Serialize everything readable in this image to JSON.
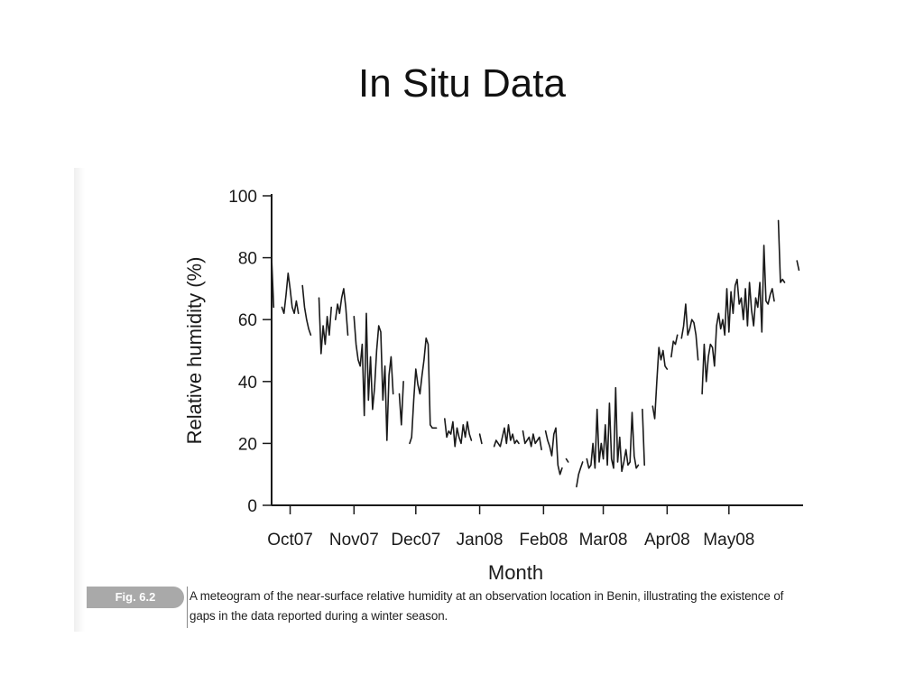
{
  "slide": {
    "title": "In Situ Data"
  },
  "figure": {
    "badge": "Fig. 6.2",
    "caption": "A meteogram of the near-surface relative humidity at an observation location in Benin, illustrating the existence of gaps in the data reported during a winter season."
  },
  "chart_data": {
    "type": "line",
    "title": "",
    "xlabel": "Month",
    "ylabel": "Relative humidity (%)",
    "ylim": [
      0,
      100
    ],
    "yticks": [
      0,
      20,
      40,
      60,
      80,
      100
    ],
    "x_range": [
      "2007-09-22",
      "2008-05-31"
    ],
    "xtick_labels": [
      "Oct07",
      "Nov07",
      "Dec07",
      "Jan08",
      "Feb08",
      "Mar08",
      "Apr08",
      "May08"
    ],
    "xtick_dates": [
      "2007-10-01",
      "2007-11-01",
      "2007-12-01",
      "2008-01-01",
      "2008-02-01",
      "2008-03-01",
      "2008-04-01",
      "2008-05-01"
    ],
    "grid": false,
    "line_color": "#1a1a1a",
    "series": [
      {
        "segments": [
          {
            "x": [
              "2007-09-22",
              "2007-09-23"
            ],
            "y": [
              80,
              64
            ]
          },
          {
            "x": [
              "2007-09-27",
              "2007-09-28",
              "2007-09-29",
              "2007-09-30",
              "2007-10-01",
              "2007-10-02",
              "2007-10-03",
              "2007-10-04",
              "2007-10-05"
            ],
            "y": [
              64,
              62,
              68,
              75,
              70,
              64,
              62,
              66,
              62
            ]
          },
          {
            "x": [
              "2007-10-07",
              "2007-10-08",
              "2007-10-09",
              "2007-10-10",
              "2007-10-11"
            ],
            "y": [
              71,
              64,
              60,
              57,
              55
            ]
          },
          {
            "x": [
              "2007-10-15",
              "2007-10-16",
              "2007-10-17",
              "2007-10-18",
              "2007-10-19",
              "2007-10-20",
              "2007-10-21"
            ],
            "y": [
              67,
              49,
              58,
              52,
              61,
              55,
              64
            ]
          },
          {
            "x": [
              "2007-10-23",
              "2007-10-24",
              "2007-10-25",
              "2007-10-26",
              "2007-10-27",
              "2007-10-28",
              "2007-10-29"
            ],
            "y": [
              60,
              65,
              62,
              67,
              70,
              64,
              55
            ]
          },
          {
            "x": [
              "2007-11-01",
              "2007-11-02",
              "2007-11-03",
              "2007-11-04",
              "2007-11-05",
              "2007-11-06",
              "2007-11-07",
              "2007-11-08",
              "2007-11-09",
              "2007-11-10",
              "2007-11-11",
              "2007-11-12",
              "2007-11-13",
              "2007-11-14",
              "2007-11-15",
              "2007-11-16",
              "2007-11-17",
              "2007-11-18",
              "2007-11-19",
              "2007-11-20"
            ],
            "y": [
              61,
              52,
              47,
              45,
              52,
              29,
              62,
              34,
              48,
              31,
              38,
              50,
              58,
              56,
              34,
              45,
              21,
              42,
              48,
              36
            ]
          },
          {
            "x": [
              "2007-11-23",
              "2007-11-24",
              "2007-11-25"
            ],
            "y": [
              36,
              26,
              40
            ]
          },
          {
            "x": [
              "2007-11-28",
              "2007-11-29",
              "2007-11-30",
              "2007-12-01",
              "2007-12-02",
              "2007-12-03",
              "2007-12-04",
              "2007-12-05",
              "2007-12-06",
              "2007-12-07",
              "2007-12-08",
              "2007-12-09",
              "2007-12-10",
              "2007-12-11"
            ],
            "y": [
              20,
              22,
              34,
              44,
              39,
              36,
              42,
              47,
              54,
              52,
              26,
              25,
              25,
              25
            ]
          },
          {
            "x": [
              "2007-12-15",
              "2007-12-16",
              "2007-12-17",
              "2007-12-18",
              "2007-12-19",
              "2007-12-20",
              "2007-12-21",
              "2007-12-22",
              "2007-12-23",
              "2007-12-24",
              "2007-12-25",
              "2007-12-26",
              "2007-12-27",
              "2007-12-28"
            ],
            "y": [
              28,
              22,
              24,
              23,
              27,
              19,
              25,
              22,
              20,
              26,
              22,
              27,
              23,
              21
            ]
          },
          {
            "x": [
              "2008-01-01",
              "2008-01-02"
            ],
            "y": [
              23,
              20
            ]
          },
          {
            "x": [
              "2008-01-08",
              "2008-01-09",
              "2008-01-10",
              "2008-01-11",
              "2008-01-12",
              "2008-01-13",
              "2008-01-14",
              "2008-01-15",
              "2008-01-16",
              "2008-01-17",
              "2008-01-18",
              "2008-01-19",
              "2008-01-20"
            ],
            "y": [
              19,
              21,
              20,
              19,
              22,
              25,
              20,
              26,
              21,
              23,
              20,
              21,
              20
            ]
          },
          {
            "x": [
              "2008-01-22",
              "2008-01-23",
              "2008-01-24",
              "2008-01-25",
              "2008-01-26",
              "2008-01-27",
              "2008-01-28",
              "2008-01-29",
              "2008-01-30",
              "2008-01-31"
            ],
            "y": [
              24,
              20,
              21,
              22,
              19,
              23,
              20,
              21,
              22,
              18
            ]
          },
          {
            "x": [
              "2008-02-02",
              "2008-02-03",
              "2008-02-04",
              "2008-02-05",
              "2008-02-06",
              "2008-02-07",
              "2008-02-08",
              "2008-02-09",
              "2008-02-10"
            ],
            "y": [
              24,
              21,
              19,
              16,
              23,
              25,
              13,
              10,
              12
            ]
          },
          {
            "x": [
              "2008-02-12",
              "2008-02-13"
            ],
            "y": [
              15,
              14
            ]
          },
          {
            "x": [
              "2008-02-17",
              "2008-02-18",
              "2008-02-19",
              "2008-02-20"
            ],
            "y": [
              6,
              10,
              12,
              14
            ]
          },
          {
            "x": [
              "2008-02-22",
              "2008-02-23",
              "2008-02-24",
              "2008-02-25",
              "2008-02-26",
              "2008-02-27",
              "2008-02-28",
              "2008-02-29",
              "2008-03-01",
              "2008-03-02",
              "2008-03-03",
              "2008-03-04",
              "2008-03-05",
              "2008-03-06",
              "2008-03-07",
              "2008-03-08",
              "2008-03-09",
              "2008-03-10",
              "2008-03-11",
              "2008-03-12",
              "2008-03-13",
              "2008-03-14",
              "2008-03-15",
              "2008-03-16",
              "2008-03-17",
              "2008-03-18"
            ],
            "y": [
              15,
              12,
              13,
              20,
              12,
              31,
              14,
              20,
              15,
              26,
              13,
              33,
              15,
              12,
              38,
              14,
              22,
              11,
              14,
              18,
              13,
              14,
              30,
              16,
              12,
              13
            ]
          },
          {
            "x": [
              "2008-03-20",
              "2008-03-21"
            ],
            "y": [
              31,
              13
            ]
          },
          {
            "x": [
              "2008-03-25",
              "2008-03-26",
              "2008-03-27",
              "2008-03-28",
              "2008-03-29",
              "2008-03-30",
              "2008-03-31",
              "2008-04-01"
            ],
            "y": [
              32,
              28,
              40,
              51,
              47,
              50,
              45,
              44
            ]
          },
          {
            "x": [
              "2008-04-03",
              "2008-04-04",
              "2008-04-05",
              "2008-04-06"
            ],
            "y": [
              48,
              53,
              52,
              55
            ]
          },
          {
            "x": [
              "2008-04-08",
              "2008-04-09",
              "2008-04-10",
              "2008-04-11",
              "2008-04-12",
              "2008-04-13",
              "2008-04-14",
              "2008-04-15",
              "2008-04-16"
            ],
            "y": [
              54,
              58,
              65,
              55,
              57,
              60,
              59,
              55,
              47
            ]
          },
          {
            "x": [
              "2008-04-18",
              "2008-04-19",
              "2008-04-20",
              "2008-04-21",
              "2008-04-22",
              "2008-04-23",
              "2008-04-24",
              "2008-04-25",
              "2008-04-26",
              "2008-04-27",
              "2008-04-28",
              "2008-04-29",
              "2008-04-30",
              "2008-05-01",
              "2008-05-02",
              "2008-05-03",
              "2008-05-04",
              "2008-05-05",
              "2008-05-06",
              "2008-05-07",
              "2008-05-08",
              "2008-05-09",
              "2008-05-10",
              "2008-05-11",
              "2008-05-12",
              "2008-05-13",
              "2008-05-14",
              "2008-05-15",
              "2008-05-16",
              "2008-05-17",
              "2008-05-18",
              "2008-05-19",
              "2008-05-20",
              "2008-05-21",
              "2008-05-22",
              "2008-05-23"
            ],
            "y": [
              36,
              52,
              40,
              48,
              52,
              51,
              45,
              58,
              62,
              57,
              60,
              55,
              70,
              56,
              69,
              62,
              71,
              73,
              65,
              67,
              60,
              70,
              58,
              72,
              63,
              58,
              67,
              64,
              72,
              56,
              84,
              66,
              65,
              68,
              70,
              66
            ]
          },
          {
            "x": [
              "2008-05-25",
              "2008-05-26",
              "2008-05-27",
              "2008-05-28"
            ],
            "y": [
              92,
              72,
              73,
              72
            ]
          },
          {
            "x": [
              "2008-06-03",
              "2008-06-04"
            ],
            "y": [
              79,
              76
            ]
          }
        ]
      }
    ]
  }
}
